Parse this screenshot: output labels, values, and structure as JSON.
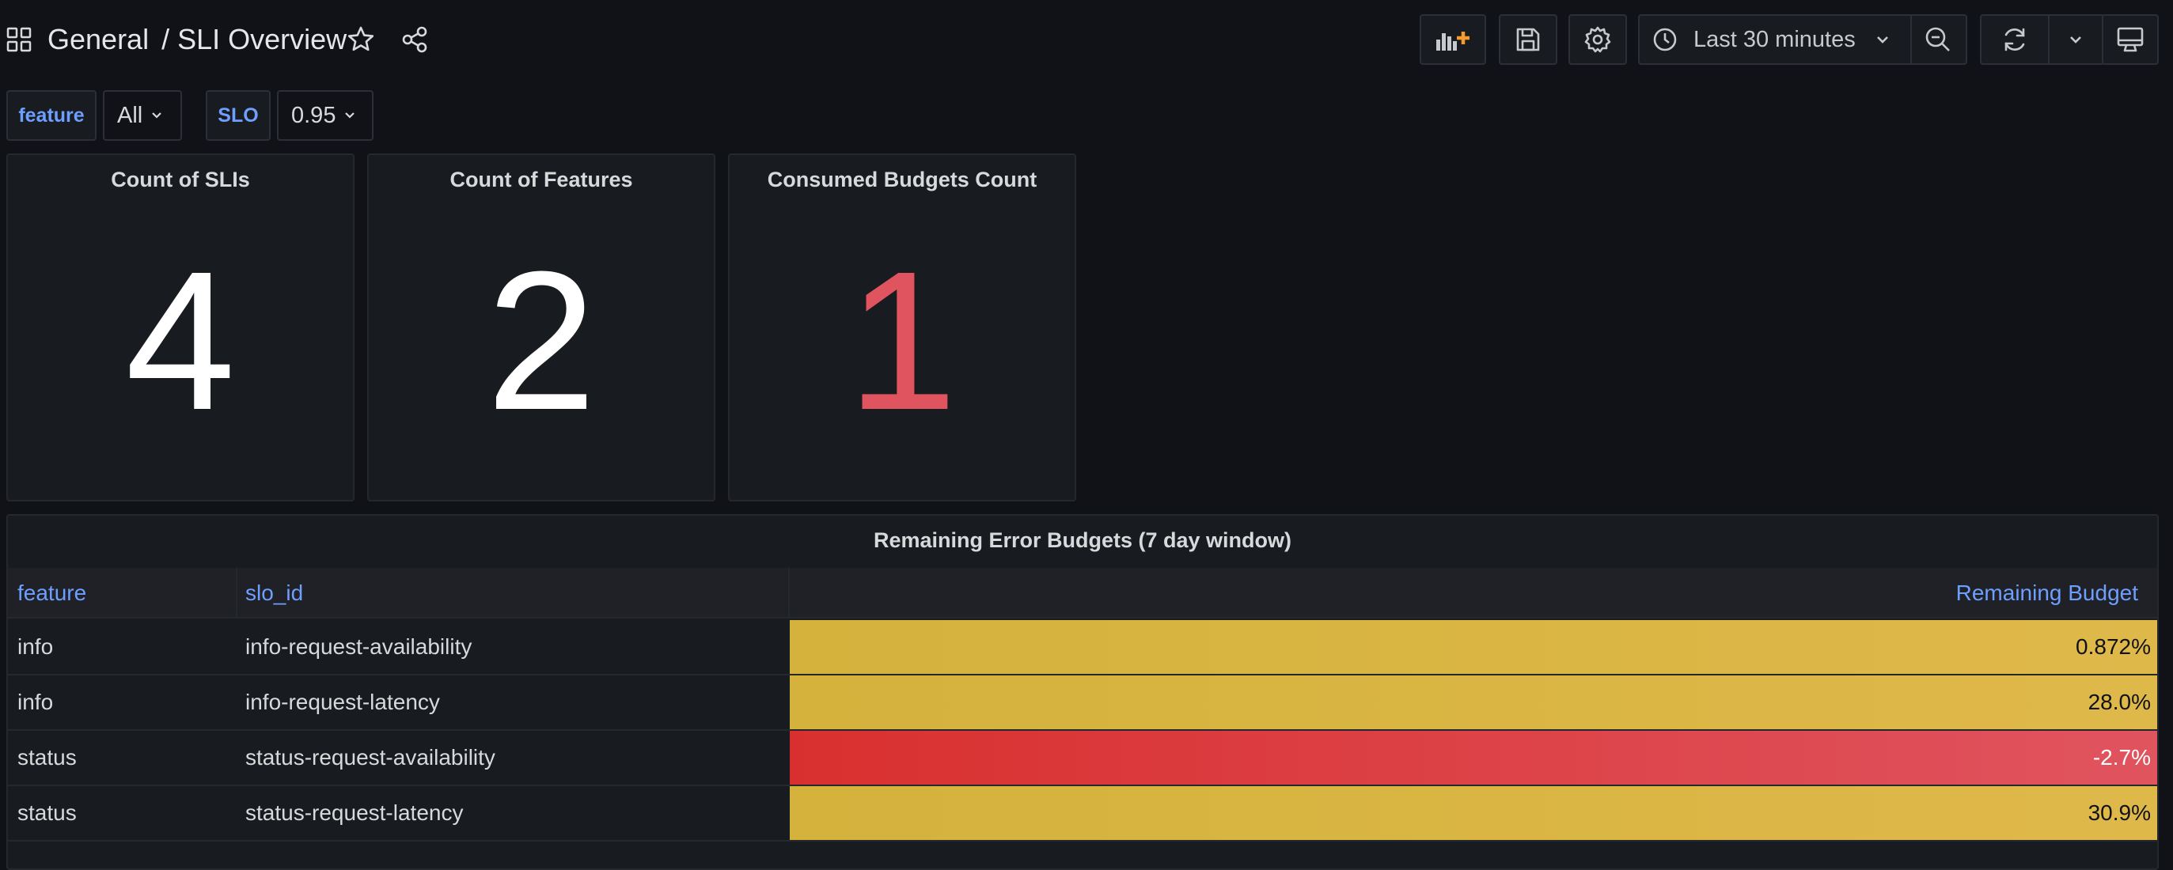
{
  "breadcrumb": {
    "folder": "General",
    "separator": "/",
    "title": "SLI Overview"
  },
  "toolbar": {
    "time_range": "Last 30 minutes"
  },
  "variables": [
    {
      "label": "feature",
      "value": "All"
    },
    {
      "label": "SLO",
      "value": "0.95"
    }
  ],
  "stats": [
    {
      "title": "Count of SLIs",
      "value": "4",
      "color": "#ffffff"
    },
    {
      "title": "Count of Features",
      "value": "2",
      "color": "#ffffff"
    },
    {
      "title": "Consumed Budgets Count",
      "value": "1",
      "color": "#e0545f"
    }
  ],
  "table": {
    "title": "Remaining Error Budgets (7 day window)",
    "columns": [
      "feature",
      "slo_id",
      "Remaining Budget"
    ],
    "rows": [
      {
        "feature": "info",
        "slo_id": "info-request-availability",
        "budget": "0.872%",
        "status": "warning"
      },
      {
        "feature": "info",
        "slo_id": "info-request-latency",
        "budget": "28.0%",
        "status": "warning"
      },
      {
        "feature": "status",
        "slo_id": "status-request-availability",
        "budget": "-2.7%",
        "status": "danger"
      },
      {
        "feature": "status",
        "slo_id": "status-request-latency",
        "budget": "30.9%",
        "status": "warning"
      }
    ]
  },
  "colors": {
    "background": "#111217",
    "panel": "#181b1f",
    "link_blue": "#6e9fff",
    "warning_yellow": "#d9b43c",
    "danger_red": "#e0545f",
    "accent_orange": "#f59b2e"
  },
  "icons": {
    "nav": "grid-icon",
    "star": "star-icon",
    "share": "share-icon",
    "add_panel": "add-panel-icon",
    "save": "save-icon",
    "settings": "gear-icon",
    "clock": "clock-icon",
    "zoom_out": "zoom-out-icon",
    "refresh": "refresh-icon",
    "kiosk": "monitor-icon"
  }
}
